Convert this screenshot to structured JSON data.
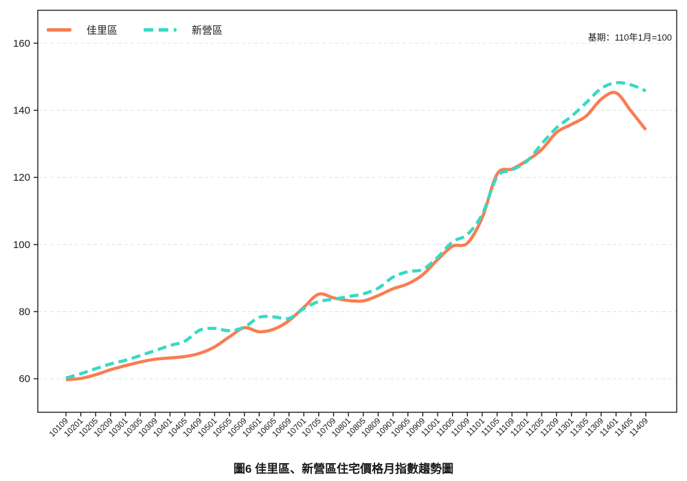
{
  "title": {
    "text": "圖6 佳里區、新營區住宅價格月指數趨勢圖"
  },
  "annotation": {
    "base_period": "基期：110年1月=100"
  },
  "legend": {
    "items": [
      {
        "label": "佳里區"
      },
      {
        "label": "新營區"
      }
    ]
  },
  "colors": {
    "jiali_orange": "#F87D51",
    "xinying_teal": "#38D9C2",
    "grid": "#DCE3E6",
    "axis": "#1A1A1A"
  },
  "chart_data": {
    "type": "line",
    "title": "圖6 佳里區、新營區住宅價格月指數趨勢圖",
    "note": "基期：110年1月=100",
    "xlabel": "",
    "ylabel": "",
    "grid": "horizontal-dashed",
    "legend_position": "top-left",
    "yticks": [
      60,
      80,
      100,
      120,
      140,
      160
    ],
    "ylim": [
      50,
      169.8
    ],
    "x": [
      "10109",
      "10201",
      "10205",
      "10209",
      "10301",
      "10305",
      "10309",
      "10401",
      "10405",
      "10409",
      "10501",
      "10505",
      "10509",
      "10601",
      "10605",
      "10609",
      "10701",
      "10705",
      "10709",
      "10801",
      "10805",
      "10809",
      "10901",
      "10905",
      "10909",
      "11001",
      "11005",
      "11009",
      "11101",
      "11105",
      "11109",
      "11201",
      "11205",
      "11209",
      "11301",
      "11305",
      "11309",
      "11401",
      "11405",
      "11409"
    ],
    "series": [
      {
        "name": "佳里區",
        "style": "solid",
        "color": "#F87D51",
        "values": [
          59.7,
          60.1,
          61.2,
          62.7,
          63.9,
          65.0,
          65.8,
          66.2,
          66.6,
          67.6,
          69.5,
          72.5,
          75.2,
          74.0,
          74.8,
          77.3,
          81.3,
          85.2,
          84.1,
          83.3,
          83.2,
          84.8,
          86.8,
          88.3,
          91.0,
          95.5,
          99.5,
          100.4,
          108.0,
          121.0,
          122.5,
          125.0,
          128.3,
          133.4,
          135.8,
          138.3,
          143.3,
          145.2,
          139.8,
          134.2
        ]
      },
      {
        "name": "新營區",
        "style": "dashed",
        "color": "#38D9C2",
        "values": [
          60.2,
          61.5,
          63.0,
          64.4,
          65.5,
          66.9,
          68.4,
          69.9,
          71.2,
          74.5,
          75.0,
          74.3,
          75.4,
          78.3,
          78.4,
          78.0,
          80.9,
          83.0,
          83.7,
          84.5,
          85.3,
          87.0,
          90.3,
          91.9,
          92.6,
          96.2,
          100.8,
          103.0,
          109.0,
          120.2,
          122.2,
          124.8,
          130.0,
          134.8,
          138.2,
          142.3,
          146.5,
          148.2,
          147.6,
          145.8
        ]
      }
    ]
  }
}
